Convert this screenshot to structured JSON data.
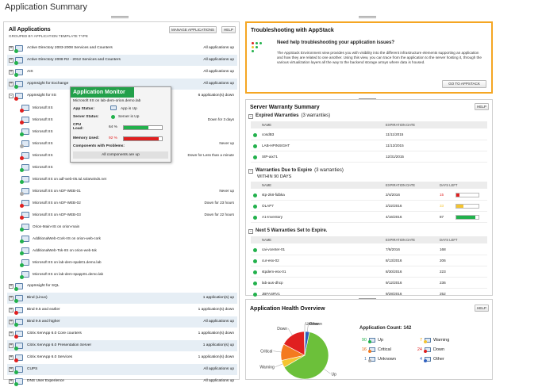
{
  "page": {
    "title": "Application Summary"
  },
  "all_apps": {
    "title": "All Applications",
    "subtitle": "GROUPED BY APPLICATION TEMPLATE TYPE",
    "manage_btn": "MANAGE APPLICATIONS",
    "help_btn": "HELP",
    "groups": [
      {
        "name": "Active Directory 2003-2008 Services and Counters",
        "status": "All applications up",
        "dot": "g",
        "exp": "+"
      },
      {
        "name": "Active Directory 2008 R2 - 2012 Services and Counters",
        "status": "All applications up",
        "dot": "g",
        "exp": "+"
      },
      {
        "name": "AIX",
        "status": "All applications up",
        "dot": "g",
        "exp": "+"
      },
      {
        "name": "AppInsight for Exchange",
        "status": "All applications up",
        "dot": "g",
        "exp": "+"
      },
      {
        "name": "AppInsight for IIS",
        "status": "6 application(s) down",
        "dot": "r",
        "exp": "-"
      }
    ],
    "iis_items": [
      {
        "name": "Microsoft IIS",
        "status": "",
        "dot": "r"
      },
      {
        "name": "Microsoft IIS",
        "status": "Down for 3 days",
        "dot": "r"
      },
      {
        "name": "Microsoft IIS",
        "status": "",
        "dot": "g"
      },
      {
        "name": "Microsoft IIS",
        "status": "Never up",
        "dot": "gr"
      },
      {
        "name": "Microsoft IIS",
        "status": "Down for Less than a minute",
        "dot": "r"
      },
      {
        "name": "Microsoft IIS",
        "status": "",
        "dot": "g"
      },
      {
        "name": "Microsoft IIS on  adf-web-05.tul.solarwinds.net",
        "status": "",
        "dot": "g"
      },
      {
        "name": "Microsoft IIS on  ADF-WEB-01",
        "status": "Never up",
        "dot": "gr"
      },
      {
        "name": "Microsoft IIS on  ADF-WEB-02",
        "status": "Down for 23 hours",
        "dot": "r"
      },
      {
        "name": "Microsoft IIS on  ADF-WEB-03",
        "status": "Down for 22 hours",
        "dot": "r"
      },
      {
        "name": "Orion-Main-IIS on  orion-main",
        "status": "",
        "dot": "g"
      },
      {
        "name": "AdditionalWeb-Cork-IIS on  orion-web-cork",
        "status": "",
        "dot": "g"
      },
      {
        "name": "AdditionalWeb-Tok-IIS on  orion-web-tok",
        "status": "",
        "dot": "g"
      },
      {
        "name": "Microsoft IIS on  lab-dem-spab01.demo.lab",
        "status": "",
        "dot": "g"
      },
      {
        "name": "Microsoft IIS on  lab-dem-spapp01.demo.lab",
        "status": "",
        "dot": "g"
      }
    ],
    "groups2": [
      {
        "name": "AppInsight for SQL",
        "status": "",
        "dot": "g",
        "exp": "+"
      },
      {
        "name": "Bind (Linux)",
        "status": "1 application(s) up",
        "dot": "g",
        "exp": "+"
      },
      {
        "name": "Bind 9.5 and earlier",
        "status": "1 application(s) down",
        "dot": "r",
        "exp": "+"
      },
      {
        "name": "Bind 9.6 and higher",
        "status": "All applications up",
        "dot": "g",
        "exp": "+"
      },
      {
        "name": "Citrix XenApp 6.0 Core counters",
        "status": "1 application(s) down",
        "dot": "r",
        "exp": "+"
      },
      {
        "name": "Citrix XenApp 6.0 Presentation Server",
        "status": "1 application(s) up",
        "dot": "g",
        "exp": "+"
      },
      {
        "name": "Citrix XenApp 6.0 Services",
        "status": "1 application(s) down",
        "dot": "r",
        "exp": "+"
      },
      {
        "name": "CUPS",
        "status": "All applications up",
        "dot": "g",
        "exp": "+"
      },
      {
        "name": "DNS User Experience",
        "status": "All applications up",
        "dot": "g",
        "exp": "+"
      }
    ]
  },
  "popup": {
    "title": "Application Monitor",
    "name": "Microsoft IIS on lab-dem-orion.demo.lab",
    "app_status_label": "App Status:",
    "app_status": "App is Up",
    "server_status_label": "Server Status:",
    "server_status": "Server is Up",
    "cpu_label": "CPU Load:",
    "cpu_value": "64 %",
    "cpu_pct": 64,
    "mem_label": "Memory Used:",
    "mem_value": "92 %",
    "mem_pct": 92,
    "problems_label": "Components with Problems:",
    "problems_value": "All components are up"
  },
  "troubleshoot": {
    "title": "Troubleshooting with AppStack",
    "heading": "Need help troubleshooting your application issues?",
    "body": "The AppStack Environment view provides you with visibility into the different infrastructure elements supporting an application and how they are related to one another. Using this view, you can trace from the application to the server hosting it, through the various virtualization layers all the way to the backend storage arrays where data is housed.",
    "button": "GO TO APPSTACK"
  },
  "warranty": {
    "title": "Server Warranty Summary",
    "help_btn": "HELP",
    "expired": {
      "label": "Expired Warranties",
      "count": "(3 warranties)",
      "col_name": "NAME",
      "col_date": "EXPIRATION DATE",
      "rows": [
        {
          "name": "cosdB3",
          "date": "11/11/2015"
        },
        {
          "name": "LAB-HPINSIGHT",
          "date": "11/12/2015"
        },
        {
          "name": "StP-aix71",
          "date": "12/31/2015"
        }
      ]
    },
    "due": {
      "label": "Warranties Due to Expire",
      "count": "(3 warranties)",
      "within": "WITHIN 90 DAYS",
      "col_name": "NAME",
      "col_date": "EXPIRATION DATE",
      "col_days": "DAYS LEFT",
      "rows": [
        {
          "name": "stp-2k8-fidbka",
          "date": "2/4/2016",
          "days": "15",
          "pct": 15,
          "color": "#e02020"
        },
        {
          "name": "OLAP7",
          "date": "2/22/2016",
          "days": "33",
          "pct": 33,
          "color": "#f4c430"
        },
        {
          "name": "A1-Inventory",
          "date": "4/16/2016",
          "days": "87",
          "pct": 87,
          "color": "#22b14c"
        }
      ]
    },
    "next": {
      "label": "Next 5 Warranties Set to Expire.",
      "col_name": "NAME",
      "col_date": "EXPIRATION DATE",
      "col_days": "DAYS LEFT",
      "rows": [
        {
          "name": "cai-vcenter-01",
          "date": "7/6/2016",
          "days": "168"
        },
        {
          "name": "cur-esx-02",
          "date": "8/13/2016",
          "days": "206"
        },
        {
          "name": "stpdem-esx-01",
          "date": "8/30/2016",
          "days": "223"
        },
        {
          "name": "lab-aus-dhcp",
          "date": "9/12/2016",
          "days": "236"
        },
        {
          "name": "JBFASRV1",
          "date": "9/28/2016",
          "days": "252"
        }
      ]
    }
  },
  "health": {
    "title": "Application Health Overview",
    "help_btn": "HELP",
    "count_label": "Application Count: 142",
    "legend": [
      {
        "num": "90",
        "label": "Up",
        "color": "#22b14c",
        "numcolor": "#22b14c"
      },
      {
        "num": "7",
        "label": "Warning",
        "color": "#f4c430",
        "numcolor": "#e8a200"
      },
      {
        "num": "16",
        "label": "Critical",
        "color": "#f47a20",
        "numcolor": "#e06000"
      },
      {
        "num": "24",
        "label": "Down",
        "color": "#e02020",
        "numcolor": "#e02020"
      },
      {
        "num": "1",
        "label": "Unknown",
        "color": "#aaaaaa",
        "numcolor": "#4a7ab0"
      },
      {
        "num": "4",
        "label": "Other",
        "color": "#3060c0",
        "numcolor": "#3060c0"
      }
    ],
    "pie_labels": [
      "Other",
      "Unknown",
      "Down",
      "Critical",
      "Warning",
      "Up"
    ]
  },
  "chart_data": {
    "type": "pie",
    "categories": [
      "Up",
      "Warning",
      "Critical",
      "Down",
      "Unknown",
      "Other"
    ],
    "values": [
      90,
      7,
      16,
      24,
      1,
      4
    ],
    "colors": [
      "#6cc03a",
      "#f4c430",
      "#f47a20",
      "#e02020",
      "#aaaaaa",
      "#3060c0"
    ]
  }
}
